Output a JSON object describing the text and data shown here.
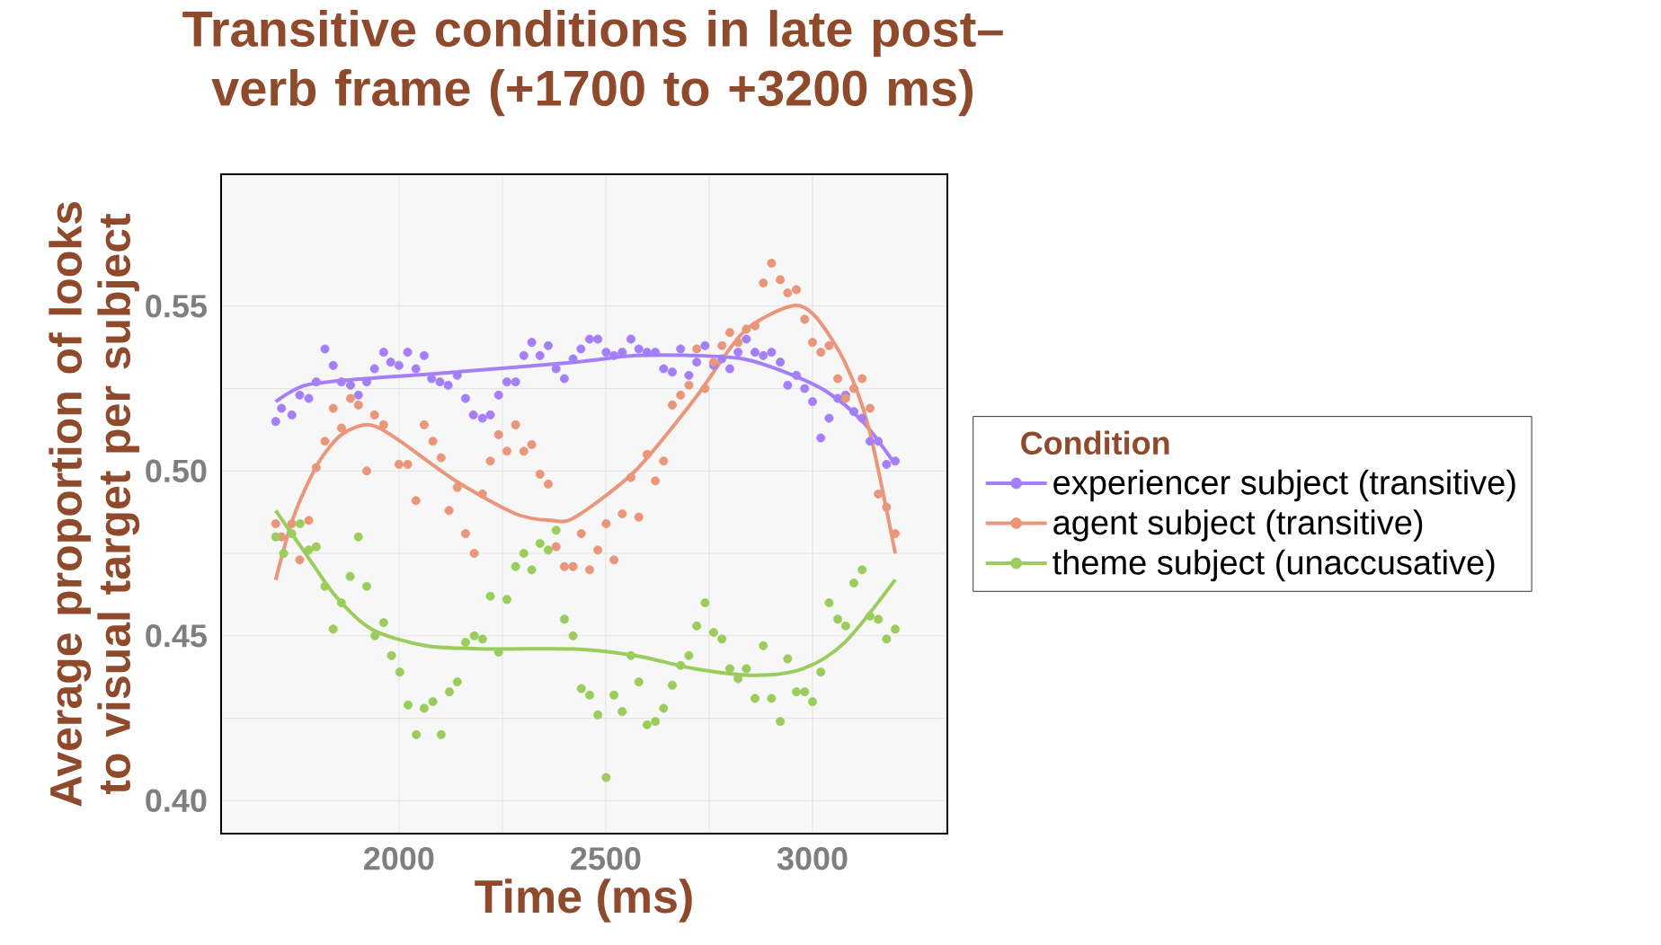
{
  "chart_data": {
    "type": "scatter",
    "title": "Transitive conditions in late post–verb frame (+1700 to +3200 ms)",
    "xlabel": "Time (ms)",
    "ylabel": "Average proportion of looks to visual target per subject",
    "legend_title": "Condition",
    "legend": "right",
    "grid": true,
    "marker": "circle",
    "xlim": [
      1570,
      3326
    ],
    "ylim": [
      0.39,
      0.59
    ],
    "xticks": [
      2000,
      2500,
      3000
    ],
    "yticks": [
      {
        "value": 0.4,
        "label": "0.40"
      },
      {
        "value": 0.45,
        "label": "0.45"
      },
      {
        "value": 0.5,
        "label": "0.50"
      },
      {
        "value": 0.55,
        "label": "0.55"
      }
    ],
    "series": [
      {
        "name": "experiencer subject (transitive)",
        "color": "#a47ff8",
        "x": [
          1702,
          1716,
          1741,
          1760,
          1782,
          1800,
          1821,
          1841,
          1861,
          1883,
          1902,
          1922,
          1941,
          1963,
          1980,
          2000,
          2021,
          2041,
          2061,
          2079,
          2099,
          2119,
          2141,
          2161,
          2180,
          2202,
          2221,
          2241,
          2261,
          2282,
          2302,
          2321,
          2341,
          2361,
          2380,
          2400,
          2421,
          2440,
          2461,
          2481,
          2501,
          2520,
          2540,
          2561,
          2580,
          2600,
          2620,
          2640,
          2661,
          2681,
          2701,
          2720,
          2740,
          2761,
          2781,
          2800,
          2820,
          2840,
          2861,
          2881,
          2901,
          2922,
          2940,
          2961,
          2981,
          3000,
          3020,
          3040,
          3061,
          3080,
          3100,
          3120,
          3139,
          3159,
          3179,
          3200
        ],
        "values": [
          0.515,
          0.519,
          0.517,
          0.523,
          0.522,
          0.527,
          0.537,
          0.532,
          0.527,
          0.526,
          0.523,
          0.527,
          0.531,
          0.536,
          0.533,
          0.532,
          0.536,
          0.531,
          0.535,
          0.528,
          0.527,
          0.526,
          0.529,
          0.522,
          0.517,
          0.516,
          0.517,
          0.523,
          0.527,
          0.527,
          0.535,
          0.539,
          0.535,
          0.538,
          0.531,
          0.528,
          0.534,
          0.537,
          0.54,
          0.54,
          0.536,
          0.535,
          0.536,
          0.54,
          0.537,
          0.536,
          0.536,
          0.531,
          0.53,
          0.537,
          0.529,
          0.533,
          0.538,
          0.532,
          0.534,
          0.531,
          0.536,
          0.54,
          0.536,
          0.535,
          0.536,
          0.533,
          0.526,
          0.529,
          0.525,
          0.521,
          0.51,
          0.516,
          0.522,
          0.523,
          0.518,
          0.516,
          0.509,
          0.509,
          0.502,
          0.503
        ]
      },
      {
        "name": "agent subject (transitive)",
        "color": "#e9967a",
        "x": [
          1702,
          1716,
          1741,
          1760,
          1782,
          1800,
          1821,
          1841,
          1861,
          1883,
          1902,
          1922,
          1941,
          1963,
          2000,
          2021,
          2041,
          2061,
          2082,
          2102,
          2121,
          2141,
          2161,
          2182,
          2202,
          2221,
          2241,
          2261,
          2282,
          2302,
          2321,
          2341,
          2361,
          2380,
          2400,
          2421,
          2441,
          2461,
          2481,
          2501,
          2520,
          2540,
          2561,
          2580,
          2600,
          2620,
          2640,
          2661,
          2681,
          2701,
          2720,
          2740,
          2761,
          2781,
          2800,
          2820,
          2840,
          2861,
          2881,
          2901,
          2922,
          2940,
          2961,
          2981,
          3000,
          3020,
          3040,
          3061,
          3080,
          3100,
          3120,
          3139,
          3159,
          3179,
          3200
        ],
        "values": [
          0.484,
          0.48,
          0.484,
          0.473,
          0.485,
          0.501,
          0.509,
          0.519,
          0.513,
          0.522,
          0.52,
          0.5,
          0.517,
          0.514,
          0.502,
          0.502,
          0.491,
          0.514,
          0.509,
          0.504,
          0.488,
          0.495,
          0.481,
          0.475,
          0.493,
          0.503,
          0.511,
          0.506,
          0.514,
          0.506,
          0.508,
          0.499,
          0.496,
          0.477,
          0.471,
          0.471,
          0.481,
          0.47,
          0.476,
          0.484,
          0.473,
          0.487,
          0.498,
          0.486,
          0.505,
          0.497,
          0.503,
          0.52,
          0.523,
          0.526,
          0.537,
          0.525,
          0.533,
          0.538,
          0.542,
          0.539,
          0.543,
          0.544,
          0.557,
          0.563,
          0.558,
          0.554,
          0.555,
          0.546,
          0.539,
          0.536,
          0.538,
          0.528,
          0.522,
          0.525,
          0.528,
          0.519,
          0.493,
          0.489,
          0.481
        ]
      },
      {
        "name": "theme subject (unaccusative)",
        "color": "#9acd5b",
        "x": [
          1702,
          1721,
          1741,
          1761,
          1782,
          1800,
          1821,
          1841,
          1861,
          1882,
          1902,
          1922,
          1942,
          1963,
          1982,
          2002,
          2022,
          2042,
          2061,
          2082,
          2102,
          2122,
          2141,
          2161,
          2182,
          2202,
          2221,
          2241,
          2261,
          2282,
          2302,
          2321,
          2341,
          2361,
          2380,
          2400,
          2421,
          2441,
          2461,
          2481,
          2501,
          2520,
          2540,
          2561,
          2580,
          2600,
          2620,
          2640,
          2661,
          2681,
          2701,
          2720,
          2740,
          2761,
          2781,
          2800,
          2820,
          2840,
          2861,
          2881,
          2901,
          2922,
          2940,
          2961,
          2981,
          3000,
          3020,
          3040,
          3061,
          3080,
          3100,
          3120,
          3139,
          3159,
          3179,
          3200
        ],
        "values": [
          0.48,
          0.475,
          0.481,
          0.484,
          0.476,
          0.477,
          0.465,
          0.452,
          0.46,
          0.468,
          0.48,
          0.465,
          0.45,
          0.454,
          0.444,
          0.439,
          0.429,
          0.42,
          0.428,
          0.43,
          0.42,
          0.433,
          0.436,
          0.448,
          0.45,
          0.449,
          0.462,
          0.445,
          0.461,
          0.471,
          0.475,
          0.47,
          0.478,
          0.476,
          0.482,
          0.455,
          0.45,
          0.434,
          0.432,
          0.426,
          0.407,
          0.432,
          0.427,
          0.444,
          0.436,
          0.423,
          0.424,
          0.428,
          0.435,
          0.441,
          0.444,
          0.453,
          0.46,
          0.451,
          0.449,
          0.44,
          0.437,
          0.44,
          0.431,
          0.447,
          0.431,
          0.424,
          0.443,
          0.433,
          0.433,
          0.43,
          0.439,
          0.46,
          0.455,
          0.453,
          0.466,
          0.47,
          0.456,
          0.455,
          0.449,
          0.452
        ]
      },
      {
        "type": "line",
        "marker": "none",
        "color": "#a47ff8",
        "x": [
          1702,
          1774,
          1919,
          2137,
          2426,
          2571,
          2716,
          2832,
          2933,
          3035,
          3121,
          3200
        ],
        "values": [
          0.521,
          0.526,
          0.528,
          0.53,
          0.533,
          0.535,
          0.535,
          0.534,
          0.53,
          0.524,
          0.515,
          0.502
        ]
      },
      {
        "type": "line",
        "marker": "none",
        "color": "#e9967a",
        "x": [
          1702,
          1745,
          1803,
          1861,
          1927,
          1992,
          2137,
          2282,
          2368,
          2426,
          2571,
          2716,
          2832,
          2948,
          3006,
          3078,
          3136,
          3200
        ],
        "values": [
          0.467,
          0.486,
          0.502,
          0.511,
          0.514,
          0.51,
          0.497,
          0.487,
          0.485,
          0.486,
          0.5,
          0.522,
          0.542,
          0.55,
          0.547,
          0.533,
          0.513,
          0.475
        ]
      },
      {
        "type": "line",
        "marker": "none",
        "color": "#9acd5b",
        "x": [
          1702,
          1774,
          1847,
          1934,
          2064,
          2209,
          2426,
          2571,
          2716,
          2861,
          2977,
          3078,
          3200
        ],
        "values": [
          0.488,
          0.475,
          0.462,
          0.452,
          0.447,
          0.446,
          0.446,
          0.444,
          0.44,
          0.438,
          0.44,
          0.448,
          0.467
        ]
      }
    ]
  }
}
